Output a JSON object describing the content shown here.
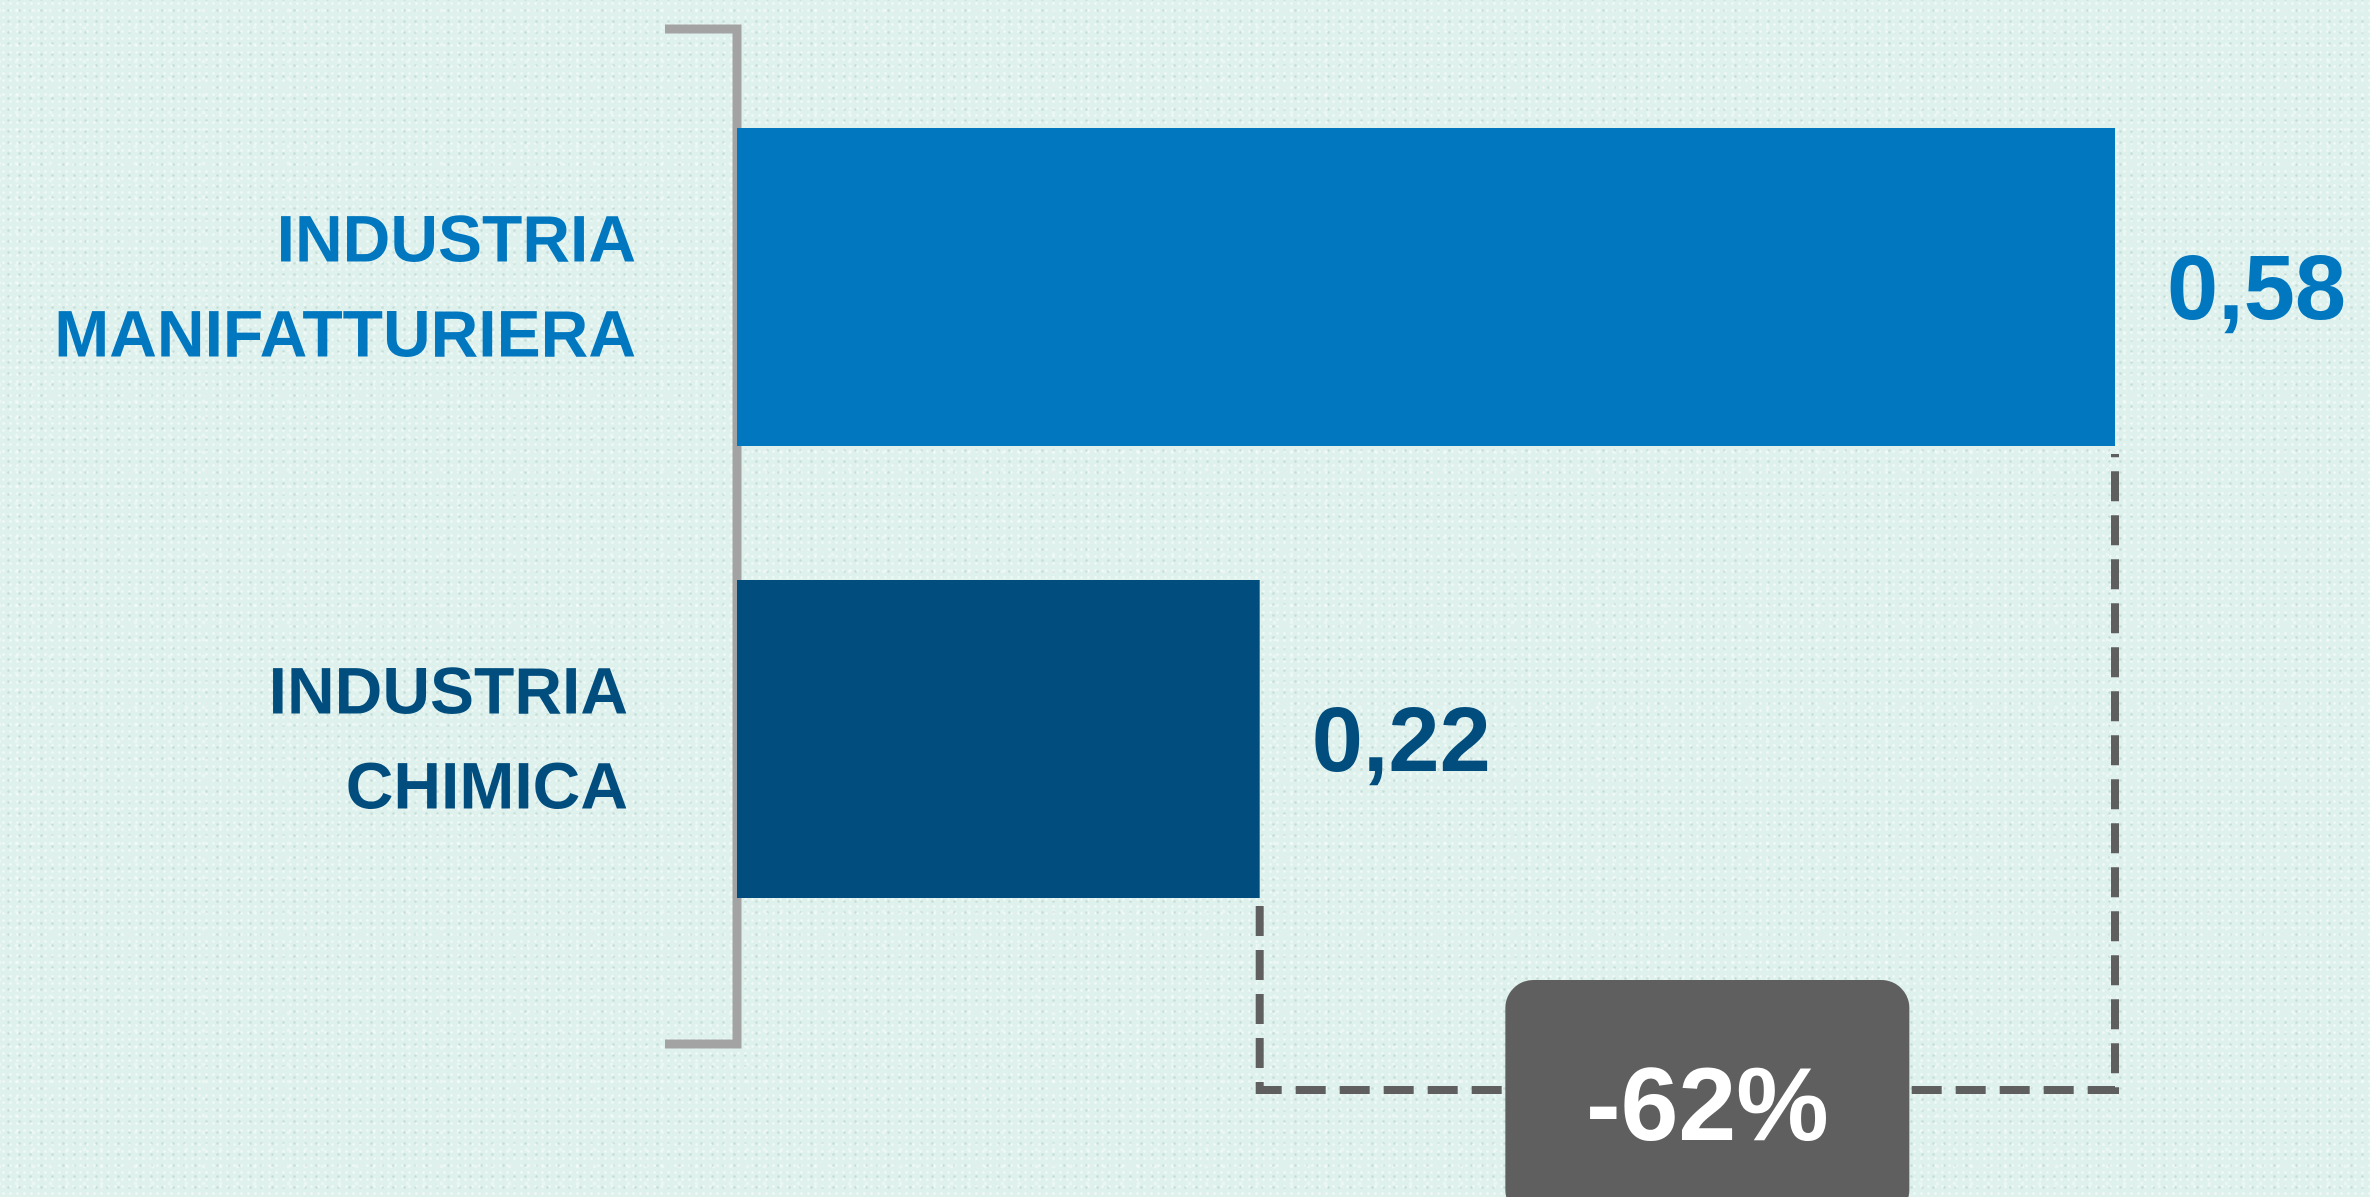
{
  "chart_data": {
    "type": "bar",
    "orientation": "horizontal",
    "categories": [
      [
        "INDUSTRIA",
        "MANIFATTURIERA"
      ],
      [
        "INDUSTRIA",
        "CHIMICA"
      ]
    ],
    "values": [
      0.58,
      0.22
    ],
    "value_labels": [
      "0,58",
      "0,22"
    ],
    "colors": [
      "#0077bf",
      "#014e7e"
    ],
    "title": "",
    "xlabel": "",
    "ylabel": "",
    "xlim": [
      0,
      0.58
    ],
    "grid": false,
    "legend": "none",
    "annotation": {
      "text": "-62%",
      "type": "difference-bracket",
      "from_category": 1,
      "to_category": 0,
      "box_color": "#5f5f5f",
      "line_color": "#5f5f5f"
    },
    "axis_color": "#a3a3a3"
  }
}
